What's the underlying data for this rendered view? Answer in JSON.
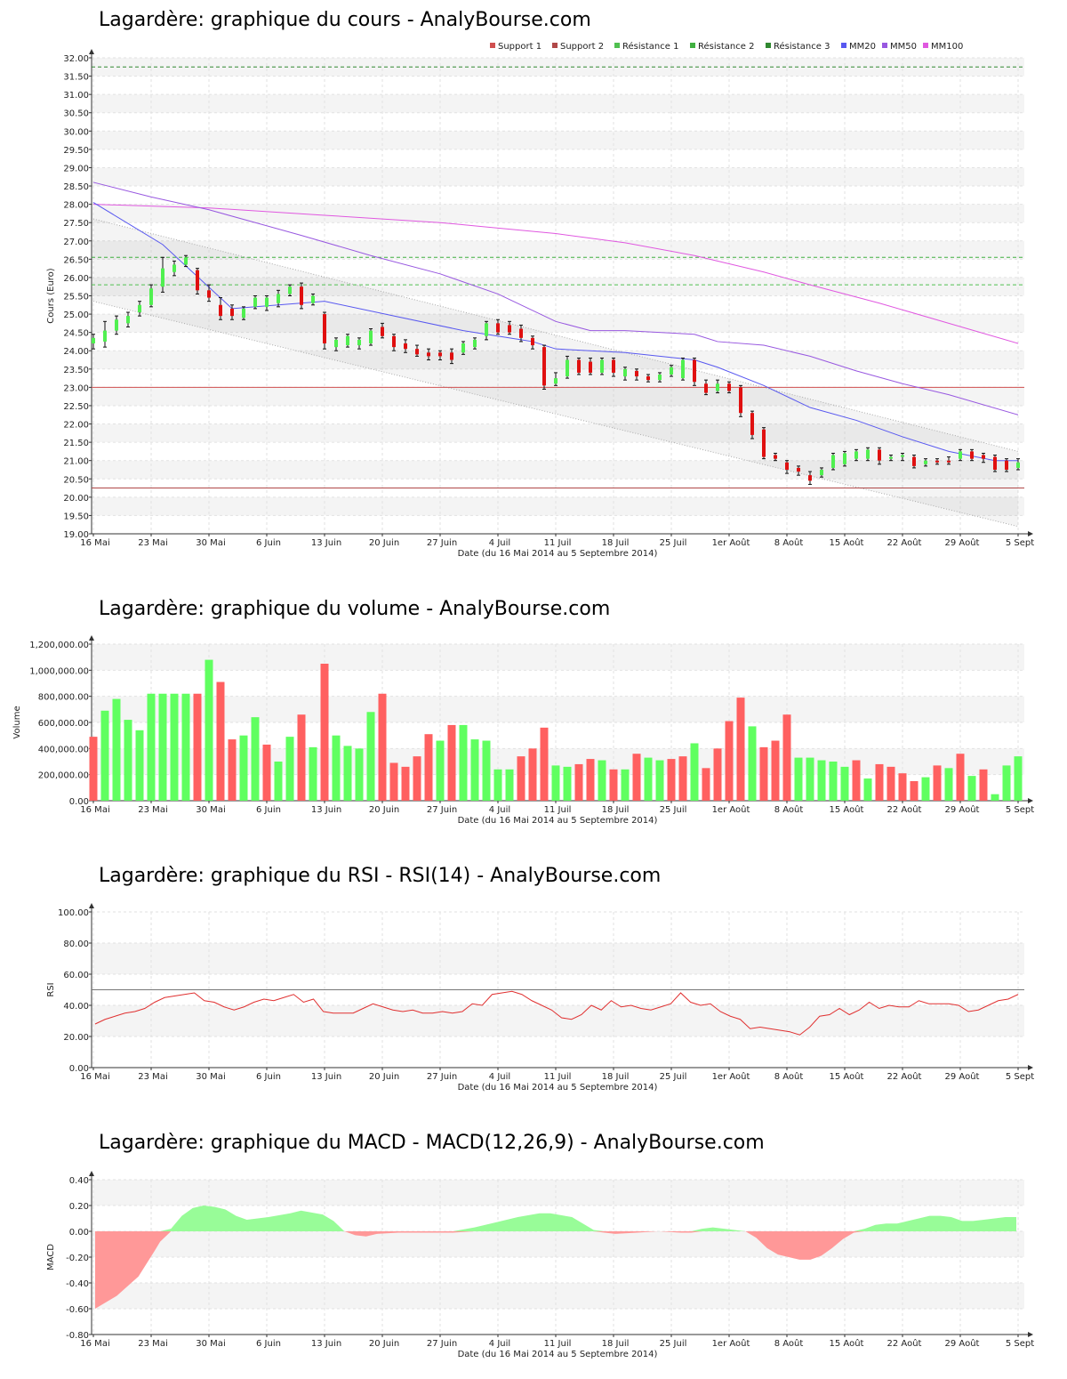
{
  "page": {
    "date_range": "Date (du 16 Mai 2014 au 5 Septembre 2014)",
    "x_ticks": [
      "16 Mai",
      "23 Mai",
      "30 Mai",
      "6 Juin",
      "13 Juin",
      "20 Juin",
      "27 Juin",
      "4 Juil",
      "11 Juil",
      "18 Juil",
      "25 Juil",
      "1er Août",
      "8 Août",
      "15 Août",
      "22 Août",
      "29 Août",
      "5 Sept"
    ]
  },
  "colors": {
    "up": "#50f050",
    "down": "#e01010",
    "support1": "#d05050",
    "support2": "#b04848",
    "resistance1": "#50c050",
    "resistance2": "#40b040",
    "resistance3": "#308830",
    "mm20": "#5858f0",
    "mm50": "#9858e0",
    "mm100": "#e058e0",
    "vol_up": "#60ff60",
    "vol_down": "#ff6060",
    "rsi_line": "#e03030",
    "macd_pos": "#98fc98",
    "macd_neg": "#ff9898"
  },
  "chart_data": [
    {
      "id": "price",
      "type": "candlestick",
      "title": "Lagardère: graphique du cours - AnalyBourse.com",
      "ylabel": "Cours (Euro)",
      "xlabel": "Date (du 16 Mai 2014 au 5 Septembre 2014)",
      "ylim": [
        19.0,
        32.0
      ],
      "yticks": [
        "19.00",
        "19.50",
        "20.00",
        "20.50",
        "21.00",
        "21.50",
        "22.00",
        "22.50",
        "23.00",
        "23.50",
        "24.00",
        "24.50",
        "25.00",
        "25.50",
        "26.00",
        "26.50",
        "27.00",
        "27.50",
        "28.00",
        "28.50",
        "29.00",
        "29.50",
        "30.00",
        "30.50",
        "31.00",
        "31.50",
        "32.00"
      ],
      "legend": [
        "Support 1",
        "Support 2",
        "Résistance 1",
        "Résistance 2",
        "Résistance 3",
        "MM20",
        "MM50",
        "MM100"
      ],
      "legend_position": "top-right",
      "grid": true,
      "n_days": 81,
      "candles": [
        [
          24.2,
          24.35,
          24.05,
          24.45
        ],
        [
          24.25,
          24.55,
          24.1,
          24.8
        ],
        [
          24.55,
          24.85,
          24.45,
          24.95
        ],
        [
          24.75,
          24.95,
          24.65,
          25.05
        ],
        [
          25.05,
          25.25,
          24.95,
          25.35
        ],
        [
          25.25,
          25.7,
          25.2,
          25.8
        ],
        [
          25.75,
          26.25,
          25.6,
          26.55
        ],
        [
          26.15,
          26.35,
          26.05,
          26.45
        ],
        [
          26.35,
          26.55,
          26.3,
          26.6
        ],
        [
          26.2,
          25.65,
          25.55,
          26.25
        ],
        [
          25.65,
          25.45,
          25.35,
          25.8
        ],
        [
          25.25,
          24.95,
          24.85,
          25.45
        ],
        [
          25.15,
          24.95,
          24.85,
          25.25
        ],
        [
          24.9,
          25.15,
          24.85,
          25.2
        ],
        [
          25.2,
          25.45,
          25.15,
          25.5
        ],
        [
          25.2,
          25.45,
          25.1,
          25.5
        ],
        [
          25.3,
          25.55,
          25.2,
          25.65
        ],
        [
          25.55,
          25.75,
          25.5,
          25.8
        ],
        [
          25.75,
          25.25,
          25.15,
          25.85
        ],
        [
          25.3,
          25.5,
          25.25,
          25.55
        ],
        [
          25.0,
          24.2,
          24.05,
          25.05
        ],
        [
          24.1,
          24.3,
          24.0,
          24.35
        ],
        [
          24.15,
          24.4,
          24.1,
          24.45
        ],
        [
          24.15,
          24.3,
          24.05,
          24.35
        ],
        [
          24.2,
          24.55,
          24.15,
          24.6
        ],
        [
          24.65,
          24.4,
          24.35,
          24.75
        ],
        [
          24.4,
          24.1,
          24.0,
          24.45
        ],
        [
          24.2,
          24.05,
          23.95,
          24.3
        ],
        [
          24.05,
          23.9,
          23.85,
          24.15
        ],
        [
          23.95,
          23.85,
          23.75,
          24.05
        ],
        [
          23.95,
          23.85,
          23.75,
          24.0
        ],
        [
          23.95,
          23.75,
          23.65,
          24.05
        ],
        [
          23.95,
          24.2,
          23.9,
          24.25
        ],
        [
          24.1,
          24.3,
          24.05,
          24.35
        ],
        [
          24.4,
          24.75,
          24.3,
          24.8
        ],
        [
          24.75,
          24.5,
          24.45,
          24.85
        ],
        [
          24.7,
          24.5,
          24.45,
          24.8
        ],
        [
          24.6,
          24.35,
          24.25,
          24.7
        ],
        [
          24.35,
          24.15,
          24.05,
          24.4
        ],
        [
          24.1,
          23.05,
          22.95,
          24.15
        ],
        [
          23.1,
          23.25,
          23.05,
          23.4
        ],
        [
          23.3,
          23.75,
          23.25,
          23.85
        ],
        [
          23.75,
          23.4,
          23.35,
          23.8
        ],
        [
          23.7,
          23.4,
          23.35,
          23.8
        ],
        [
          23.4,
          23.75,
          23.35,
          23.8
        ],
        [
          23.75,
          23.4,
          23.3,
          23.8
        ],
        [
          23.3,
          23.5,
          23.2,
          23.55
        ],
        [
          23.45,
          23.3,
          23.2,
          23.5
        ],
        [
          23.3,
          23.2,
          23.15,
          23.35
        ],
        [
          23.2,
          23.35,
          23.15,
          23.4
        ],
        [
          23.35,
          23.55,
          23.3,
          23.6
        ],
        [
          23.25,
          23.75,
          23.2,
          23.8
        ],
        [
          23.75,
          23.15,
          23.05,
          23.8
        ],
        [
          23.1,
          22.85,
          22.8,
          23.2
        ],
        [
          22.9,
          23.1,
          22.85,
          23.2
        ],
        [
          23.1,
          22.9,
          22.85,
          23.15
        ],
        [
          23.0,
          22.3,
          22.2,
          23.05
        ],
        [
          22.3,
          21.7,
          21.6,
          22.35
        ],
        [
          21.85,
          21.1,
          21.05,
          21.9
        ],
        [
          21.15,
          21.05,
          21.0,
          21.2
        ],
        [
          20.95,
          20.75,
          20.65,
          21.0
        ],
        [
          20.8,
          20.7,
          20.6,
          20.85
        ],
        [
          20.6,
          20.45,
          20.35,
          20.7
        ],
        [
          20.6,
          20.75,
          20.55,
          20.8
        ],
        [
          20.8,
          21.15,
          20.75,
          21.2
        ],
        [
          20.9,
          21.2,
          20.85,
          21.25
        ],
        [
          21.05,
          21.25,
          21.0,
          21.3
        ],
        [
          21.05,
          21.3,
          21.0,
          21.35
        ],
        [
          21.3,
          21.0,
          20.9,
          21.35
        ],
        [
          21.05,
          21.1,
          21.0,
          21.15
        ],
        [
          21.1,
          21.15,
          21.0,
          21.2
        ],
        [
          21.1,
          20.85,
          20.8,
          21.15
        ],
        [
          20.9,
          21.0,
          20.85,
          21.05
        ],
        [
          21.0,
          20.95,
          20.9,
          21.05
        ],
        [
          21.0,
          20.95,
          20.9,
          21.1
        ],
        [
          21.05,
          21.25,
          21.0,
          21.3
        ],
        [
          21.25,
          21.05,
          21.0,
          21.3
        ],
        [
          21.15,
          21.05,
          20.95,
          21.2
        ],
        [
          21.1,
          20.75,
          20.7,
          21.15
        ],
        [
          21.0,
          20.75,
          20.7,
          21.05
        ],
        [
          20.8,
          20.95,
          20.75,
          21.05
        ]
      ],
      "support1": 23.0,
      "support2": 20.25,
      "resistance1": 25.8,
      "resistance2": 26.55,
      "resistance3": 31.75,
      "mm20": [
        [
          0,
          28.05
        ],
        [
          6,
          26.9
        ],
        [
          12,
          25.15
        ],
        [
          20,
          25.35
        ],
        [
          26,
          24.95
        ],
        [
          32,
          24.55
        ],
        [
          38,
          24.25
        ],
        [
          40,
          24.05
        ],
        [
          46,
          23.95
        ],
        [
          52,
          23.75
        ],
        [
          54,
          23.55
        ],
        [
          58,
          23.05
        ],
        [
          62,
          22.45
        ],
        [
          66,
          22.1
        ],
        [
          70,
          21.65
        ],
        [
          74,
          21.25
        ],
        [
          78,
          21.0
        ],
        [
          80,
          21.0
        ]
      ],
      "mm50": [
        [
          0,
          28.6
        ],
        [
          5,
          28.2
        ],
        [
          10,
          27.85
        ],
        [
          18,
          27.15
        ],
        [
          24,
          26.6
        ],
        [
          30,
          26.1
        ],
        [
          35,
          25.55
        ],
        [
          40,
          24.8
        ],
        [
          43,
          24.55
        ],
        [
          46,
          24.55
        ],
        [
          52,
          24.45
        ],
        [
          54,
          24.25
        ],
        [
          58,
          24.15
        ],
        [
          62,
          23.85
        ],
        [
          66,
          23.45
        ],
        [
          70,
          23.1
        ],
        [
          74,
          22.8
        ],
        [
          80,
          22.25
        ]
      ],
      "mm100": [
        [
          0,
          28.0
        ],
        [
          10,
          27.9
        ],
        [
          20,
          27.7
        ],
        [
          30,
          27.5
        ],
        [
          40,
          27.2
        ],
        [
          46,
          26.95
        ],
        [
          52,
          26.6
        ],
        [
          58,
          26.15
        ],
        [
          62,
          25.8
        ],
        [
          68,
          25.3
        ],
        [
          74,
          24.75
        ],
        [
          80,
          24.2
        ]
      ],
      "channel_upper": [
        [
          0,
          27.6
        ],
        [
          80,
          21.25
        ]
      ],
      "channel_lower": [
        [
          0,
          25.35
        ],
        [
          80,
          19.2
        ]
      ]
    },
    {
      "id": "volume",
      "type": "bar",
      "title": "Lagardère: graphique du volume - AnalyBourse.com",
      "ylabel": "Volume",
      "xlabel": "Date (du 16 Mai 2014 au 5 Septembre 2014)",
      "ylim": [
        0,
        1200000
      ],
      "yticks": [
        "0.00",
        "200,000.00",
        "400,000.00",
        "600,000.00",
        "800,000.00",
        "1,000,000.00",
        "1,200,000.00"
      ],
      "values": [
        490000,
        690000,
        780000,
        620000,
        540000,
        820000,
        820000,
        820000,
        820000,
        820000,
        1080000,
        910000,
        470000,
        500000,
        640000,
        430000,
        300000,
        490000,
        660000,
        410000,
        1050000,
        500000,
        420000,
        400000,
        680000,
        820000,
        290000,
        260000,
        340000,
        510000,
        460000,
        580000,
        580000,
        470000,
        460000,
        240000,
        240000,
        340000,
        400000,
        560000,
        270000,
        260000,
        280000,
        320000,
        310000,
        240000,
        240000,
        360000,
        330000,
        310000,
        320000,
        340000,
        440000,
        250000,
        400000,
        610000,
        790000,
        570000,
        410000,
        460000,
        660000,
        330000,
        330000,
        310000,
        300000,
        260000,
        310000,
        170000,
        280000,
        260000,
        210000,
        150000,
        180000,
        270000,
        250000,
        360000,
        190000,
        240000,
        50000,
        270000,
        340000
      ],
      "up": [
        0,
        1,
        1,
        1,
        1,
        1,
        1,
        1,
        1,
        0,
        1,
        0,
        0,
        1,
        1,
        0,
        1,
        1,
        0,
        1,
        0,
        1,
        1,
        1,
        1,
        0,
        0,
        0,
        0,
        0,
        1,
        0,
        1,
        1,
        1,
        1,
        1,
        0,
        0,
        0,
        1,
        1,
        0,
        0,
        1,
        0,
        1,
        0,
        1,
        1,
        0,
        0,
        1,
        0,
        0,
        0,
        0,
        1,
        0,
        0,
        0,
        1,
        1,
        1,
        1,
        1,
        0,
        1,
        0,
        0,
        0,
        0,
        1,
        0,
        1,
        0,
        1,
        0,
        1,
        1,
        1
      ]
    },
    {
      "id": "rsi",
      "type": "line",
      "title": "Lagardère: graphique du RSI - RSI(14) - AnalyBourse.com",
      "ylabel": "RSI",
      "xlabel": "Date (du 16 Mai 2014 au 5 Septembre 2014)",
      "ylim": [
        0,
        100
      ],
      "yticks": [
        "0.00",
        "20.00",
        "40.00",
        "60.00",
        "80.00",
        "100.00"
      ],
      "reference_line": 50,
      "values": [
        28,
        31,
        33,
        35,
        36,
        38,
        42,
        45,
        46,
        47,
        48,
        43,
        42,
        39,
        37,
        39,
        42,
        44,
        43,
        45,
        47,
        42,
        44,
        36,
        35,
        35,
        35,
        38,
        41,
        39,
        37,
        36,
        37,
        35,
        35,
        36,
        35,
        36,
        41,
        40,
        47,
        48,
        49,
        47,
        43,
        40,
        37,
        32,
        31,
        34,
        40,
        37,
        43,
        39,
        40,
        38,
        37,
        39,
        41,
        48,
        42,
        40,
        41,
        36,
        33,
        31,
        25,
        26,
        25,
        24,
        23,
        21,
        26,
        33,
        34,
        38,
        34,
        37,
        42,
        38,
        40,
        39,
        39,
        43,
        41,
        41,
        41,
        40,
        36,
        37,
        40,
        43,
        44,
        47
      ]
    },
    {
      "id": "macd",
      "type": "area",
      "title": "Lagardère: graphique du MACD - MACD(12,26,9) - AnalyBourse.com",
      "ylabel": "MACD",
      "xlabel": "Date (du 16 Mai 2014 au 5 Septembre 2014)",
      "ylim": [
        -0.8,
        0.4
      ],
      "yticks": [
        "-0.80",
        "-0.60",
        "-0.40",
        "-0.20",
        "0.00",
        "0.20",
        "0.40"
      ],
      "points": [
        [
          0,
          -0.6
        ],
        [
          2,
          -0.5
        ],
        [
          4,
          -0.35
        ],
        [
          5.5,
          -0.15
        ],
        [
          6,
          -0.08
        ],
        [
          7,
          0.02
        ],
        [
          8,
          0.12
        ],
        [
          9,
          0.18
        ],
        [
          10,
          0.2
        ],
        [
          11,
          0.19
        ],
        [
          12,
          0.17
        ],
        [
          13,
          0.12
        ],
        [
          14,
          0.09
        ],
        [
          16,
          0.11
        ],
        [
          18,
          0.14
        ],
        [
          19,
          0.16
        ],
        [
          21,
          0.13
        ],
        [
          22,
          0.08
        ],
        [
          23,
          0.0
        ],
        [
          24,
          -0.03
        ],
        [
          25,
          -0.04
        ],
        [
          26,
          -0.02
        ],
        [
          28,
          -0.01
        ],
        [
          33,
          -0.01
        ],
        [
          35,
          0.03
        ],
        [
          37,
          0.07
        ],
        [
          39,
          0.11
        ],
        [
          41,
          0.14
        ],
        [
          42,
          0.14
        ],
        [
          44,
          0.11
        ],
        [
          45,
          0.06
        ],
        [
          46,
          0.01
        ],
        [
          47,
          -0.01
        ],
        [
          48,
          -0.02
        ],
        [
          50,
          -0.01
        ],
        [
          52,
          0.0
        ],
        [
          54,
          -0.01
        ],
        [
          55,
          -0.01
        ],
        [
          56,
          0.02
        ],
        [
          57,
          0.03
        ],
        [
          59,
          0.01
        ],
        [
          60,
          0.0
        ],
        [
          61,
          -0.05
        ],
        [
          62,
          -0.13
        ],
        [
          63,
          -0.18
        ],
        [
          64,
          -0.2
        ],
        [
          65,
          -0.22
        ],
        [
          66,
          -0.22
        ],
        [
          67,
          -0.19
        ],
        [
          68,
          -0.13
        ],
        [
          69,
          -0.06
        ],
        [
          70,
          -0.01
        ],
        [
          71,
          0.02
        ],
        [
          72,
          0.05
        ],
        [
          73,
          0.06
        ],
        [
          74,
          0.06
        ],
        [
          75,
          0.08
        ],
        [
          76,
          0.1
        ],
        [
          77,
          0.12
        ],
        [
          78,
          0.12
        ],
        [
          79,
          0.11
        ],
        [
          80,
          0.08
        ],
        [
          81,
          0.08
        ],
        [
          82,
          0.09
        ],
        [
          83,
          0.1
        ],
        [
          84,
          0.11
        ],
        [
          85,
          0.11
        ]
      ]
    }
  ]
}
